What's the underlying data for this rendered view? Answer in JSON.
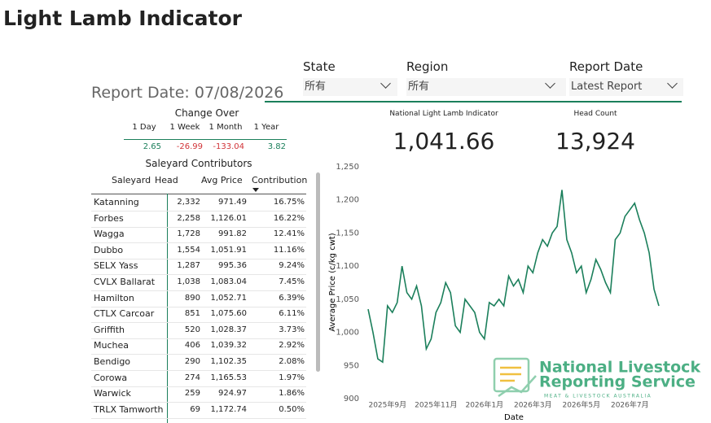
{
  "header": {
    "title": "Light Lamb Indicator"
  },
  "filters": [
    {
      "label": "State",
      "value": "所有"
    },
    {
      "label": "Region",
      "value": "所有"
    },
    {
      "label": "Report Date",
      "value": "Latest Report"
    }
  ],
  "report_date": "Report Date: 07/08/2026",
  "change_over": {
    "title": "Change Over",
    "headers": [
      "1 Day",
      "1 Week",
      "1 Month",
      "1 Year"
    ],
    "values": [
      "2.65",
      "-26.99",
      "-133.04",
      "3.82"
    ]
  },
  "kpis": [
    {
      "label": "National Light Lamb Indicator",
      "value": "1,041.66"
    },
    {
      "label": "Head Count",
      "value": "13,924"
    }
  ],
  "saleyards": {
    "title": "Saleyard Contributors",
    "columns": [
      "Saleyard",
      "Head",
      "Avg Price",
      "Contribution"
    ],
    "rows": [
      [
        "Katanning",
        "2,332",
        "971.49",
        "16.75%"
      ],
      [
        "Forbes",
        "2,258",
        "1,126.01",
        "16.22%"
      ],
      [
        "Wagga",
        "1,728",
        "991.82",
        "12.41%"
      ],
      [
        "Dubbo",
        "1,554",
        "1,051.91",
        "11.16%"
      ],
      [
        "SELX Yass",
        "1,287",
        "995.36",
        "9.24%"
      ],
      [
        "CVLX Ballarat",
        "1,038",
        "1,083.04",
        "7.45%"
      ],
      [
        "Hamilton",
        "890",
        "1,052.71",
        "6.39%"
      ],
      [
        "CTLX Carcoar",
        "851",
        "1,075.60",
        "6.11%"
      ],
      [
        "Griffith",
        "520",
        "1,028.37",
        "3.73%"
      ],
      [
        "Muchea",
        "406",
        "1,039.32",
        "2.92%"
      ],
      [
        "Bendigo",
        "290",
        "1,102.35",
        "2.08%"
      ],
      [
        "Corowa",
        "274",
        "1,165.53",
        "1.97%"
      ],
      [
        "Warwick",
        "259",
        "924.97",
        "1.86%"
      ],
      [
        "TRLX Tamworth",
        "69",
        "1,172.74",
        "0.50%"
      ]
    ]
  },
  "logo": {
    "line1": "National Livestock",
    "line2": "Reporting Service",
    "line3": "MEAT & LIVESTOCK AUSTRALIA"
  },
  "chart_data": {
    "type": "line",
    "x_label": "Date",
    "y_label": "Average Price (c/kg cwt)",
    "categories": [
      null,
      null,
      null,
      null,
      "2025年9月",
      null,
      null,
      null,
      null,
      null,
      null,
      null,
      null,
      null,
      "2025年11月",
      null,
      null,
      null,
      null,
      null,
      null,
      null,
      null,
      null,
      "2026年1月",
      null,
      null,
      null,
      null,
      null,
      null,
      null,
      null,
      null,
      "2026年3月",
      null,
      null,
      null,
      null,
      null,
      null,
      null,
      null,
      null,
      "2026年5月",
      null,
      null,
      null,
      null,
      null,
      null,
      null,
      null,
      null,
      "2026年7月",
      null,
      null,
      null,
      null,
      null,
      null
    ],
    "series": [
      {
        "name": "Average Price",
        "color": "#1b7f5b",
        "values": [
          1035,
          1000,
          960,
          955,
          1040,
          1030,
          1045,
          1100,
          1060,
          1050,
          1070,
          1040,
          975,
          990,
          1030,
          1045,
          1075,
          1060,
          1010,
          1000,
          1050,
          1040,
          1030,
          1000,
          990,
          1045,
          1040,
          1050,
          1040,
          1085,
          1070,
          1080,
          1060,
          1100,
          1090,
          1120,
          1140,
          1130,
          1150,
          1160,
          1215,
          1140,
          1120,
          1090,
          1100,
          1060,
          1080,
          1110,
          1095,
          1075,
          1060,
          1140,
          1150,
          1175,
          1185,
          1195,
          1170,
          1150,
          1120,
          1065,
          1040
        ]
      }
    ],
    "ylim": [
      900,
      1250
    ],
    "yticks": [
      900,
      950,
      {
        "value": 1000,
        "label": "1,000"
      },
      {
        "value": 1050,
        "label": "1,050"
      },
      {
        "value": 1100,
        "label": "1,100"
      },
      {
        "value": 1150,
        "label": "1,150"
      },
      {
        "value": 1200,
        "label": "1,200"
      },
      {
        "value": 1250,
        "label": "1,250"
      }
    ]
  }
}
